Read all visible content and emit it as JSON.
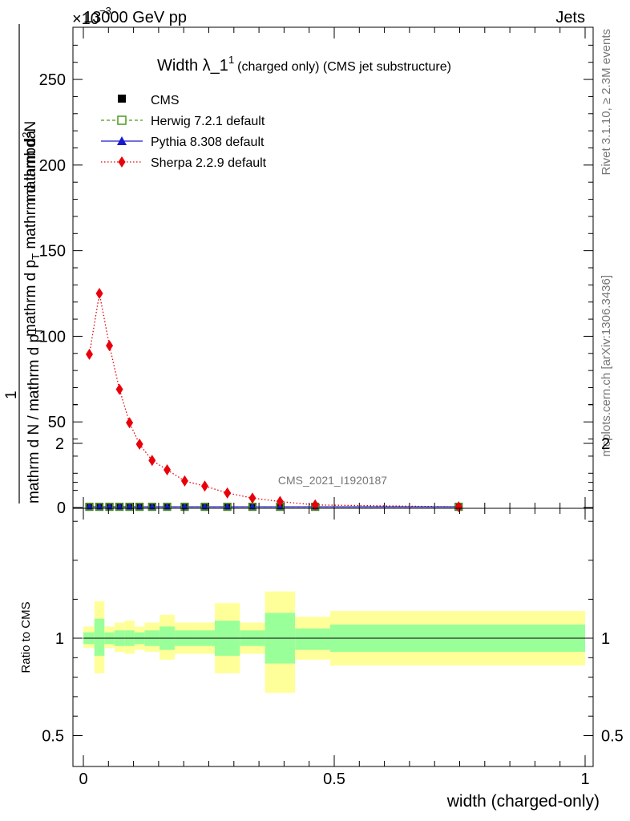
{
  "header": {
    "left": "13000 GeV pp",
    "right": "Jets",
    "exponent": "×10",
    "exponent_power": "−3"
  },
  "side_labels": {
    "rivet": "Rivet 3.1.10, ≥ 2.3M events",
    "mcplots": "mcplots.cern.ch [arXiv:1306.3436]"
  },
  "watermark": "CMS_2021_I1920187",
  "colors": {
    "cms": "#000000",
    "herwig": "#4a9a1a",
    "pythia": "#1a1acc",
    "sherpa": "#e8000b",
    "band_inner": "#99ff99",
    "band_outer": "#ffff99"
  },
  "chart_data": [
    {
      "type": "line",
      "title": "Width λ_1",
      "title_sup": "1",
      "title_suffix": "(charged only) (CMS jet substructure)",
      "ylabel_num": "1",
      "ylabel_den": "mathrm d N / mathrm d p",
      "ylabel_den_sub": "T",
      "ylabel_num_line1": "mathrm d",
      "ylabel_num_line1_sup": "2",
      "ylabel_num_line1_tail": "N",
      "ylabel_num_line2": "mathrm d p",
      "ylabel_num_line2_sub": "T",
      "ylabel_num_line2_tail": " mathrm d lambda",
      "xlim": [
        0,
        1
      ],
      "ylim": [
        0,
        0.28
      ],
      "y_ticks": [
        0,
        0.05,
        0.1,
        0.15,
        0.2,
        0.25
      ],
      "y_tick_labels": [
        "0",
        "50",
        "100",
        "150",
        "200",
        "250"
      ],
      "legend": {
        "position": "top-left"
      },
      "series": [
        {
          "name": "CMS",
          "marker": "square",
          "x": [
            0.012,
            0.032,
            0.052,
            0.072,
            0.092,
            0.112,
            0.137,
            0.167,
            0.202,
            0.242,
            0.287,
            0.337,
            0.392,
            0.462,
            0.748
          ],
          "y": [
            0.0004,
            0.0004,
            0.0004,
            0.0004,
            0.0004,
            0.0004,
            0.0004,
            0.0004,
            0.0004,
            0.0004,
            0.0004,
            0.0004,
            0.0004,
            0.0004,
            0.0004
          ]
        },
        {
          "name": "Herwig 7.2.1 default",
          "marker": "open-square",
          "line": "dashed",
          "x": [
            0.012,
            0.032,
            0.052,
            0.072,
            0.092,
            0.112,
            0.137,
            0.167,
            0.202,
            0.242,
            0.287,
            0.337,
            0.392,
            0.462,
            0.748
          ],
          "y": [
            0.0004,
            0.0004,
            0.0004,
            0.0004,
            0.0004,
            0.0004,
            0.0004,
            0.0004,
            0.0004,
            0.0004,
            0.0004,
            0.0004,
            0.0004,
            0.0004,
            0.0004
          ]
        },
        {
          "name": "Pythia 8.308 default",
          "marker": "triangle",
          "line": "solid",
          "x": [
            0.012,
            0.032,
            0.052,
            0.072,
            0.092,
            0.112,
            0.137,
            0.167,
            0.202,
            0.242,
            0.287,
            0.337,
            0.392,
            0.462,
            0.748
          ],
          "y": [
            0.0004,
            0.0004,
            0.0004,
            0.0004,
            0.0004,
            0.0004,
            0.0004,
            0.0004,
            0.0004,
            0.0004,
            0.0004,
            0.0004,
            0.0004,
            0.0004,
            0.0004
          ]
        },
        {
          "name": "Sherpa 2.2.9 default",
          "marker": "diamond",
          "line": "dotted",
          "x": [
            0.012,
            0.032,
            0.052,
            0.072,
            0.092,
            0.112,
            0.137,
            0.167,
            0.202,
            0.242,
            0.287,
            0.337,
            0.392,
            0.462,
            0.748
          ],
          "y": [
            0.0895,
            0.125,
            0.0945,
            0.069,
            0.0495,
            0.037,
            0.0275,
            0.022,
            0.0155,
            0.0125,
            0.0085,
            0.0055,
            0.0035,
            0.0015,
            0.0004
          ]
        }
      ]
    },
    {
      "type": "area",
      "ylabel": "Ratio to CMS",
      "xlabel": "width (charged-only)",
      "xlim": [
        0,
        1
      ],
      "ylim": [
        0.4,
        2.25
      ],
      "x_ticks": [
        0,
        0.5,
        1
      ],
      "x_tick_labels": [
        "0",
        "0.5",
        "1"
      ],
      "y_ticks": [
        0.5,
        1,
        2
      ],
      "y_tick_labels": [
        "0.5",
        "1",
        "2"
      ],
      "reference_line": 1,
      "bins": [
        {
          "lo": 0.0,
          "hi": 0.022,
          "inner": [
            0.97,
            1.03
          ],
          "outer": [
            0.95,
            1.06
          ]
        },
        {
          "lo": 0.022,
          "hi": 0.042,
          "inner": [
            0.91,
            1.1
          ],
          "outer": [
            0.82,
            1.19
          ]
        },
        {
          "lo": 0.042,
          "hi": 0.062,
          "inner": [
            0.97,
            1.03
          ],
          "outer": [
            0.95,
            1.06
          ]
        },
        {
          "lo": 0.062,
          "hi": 0.082,
          "inner": [
            0.96,
            1.04
          ],
          "outer": [
            0.93,
            1.08
          ]
        },
        {
          "lo": 0.082,
          "hi": 0.102,
          "inner": [
            0.96,
            1.04
          ],
          "outer": [
            0.92,
            1.09
          ]
        },
        {
          "lo": 0.102,
          "hi": 0.122,
          "inner": [
            0.97,
            1.03
          ],
          "outer": [
            0.94,
            1.06
          ]
        },
        {
          "lo": 0.122,
          "hi": 0.152,
          "inner": [
            0.96,
            1.04
          ],
          "outer": [
            0.93,
            1.08
          ]
        },
        {
          "lo": 0.152,
          "hi": 0.182,
          "inner": [
            0.94,
            1.06
          ],
          "outer": [
            0.89,
            1.12
          ]
        },
        {
          "lo": 0.182,
          "hi": 0.222,
          "inner": [
            0.96,
            1.04
          ],
          "outer": [
            0.92,
            1.08
          ]
        },
        {
          "lo": 0.222,
          "hi": 0.262,
          "inner": [
            0.96,
            1.04
          ],
          "outer": [
            0.92,
            1.08
          ]
        },
        {
          "lo": 0.262,
          "hi": 0.312,
          "inner": [
            0.91,
            1.09
          ],
          "outer": [
            0.82,
            1.18
          ]
        },
        {
          "lo": 0.312,
          "hi": 0.362,
          "inner": [
            0.96,
            1.04
          ],
          "outer": [
            0.92,
            1.08
          ]
        },
        {
          "lo": 0.362,
          "hi": 0.422,
          "inner": [
            0.87,
            1.13
          ],
          "outer": [
            0.72,
            1.24
          ]
        },
        {
          "lo": 0.422,
          "hi": 0.492,
          "inner": [
            0.94,
            1.05
          ],
          "outer": [
            0.89,
            1.11
          ]
        },
        {
          "lo": 0.492,
          "hi": 1.0,
          "inner": [
            0.93,
            1.07
          ],
          "outer": [
            0.86,
            1.14
          ]
        }
      ]
    }
  ]
}
